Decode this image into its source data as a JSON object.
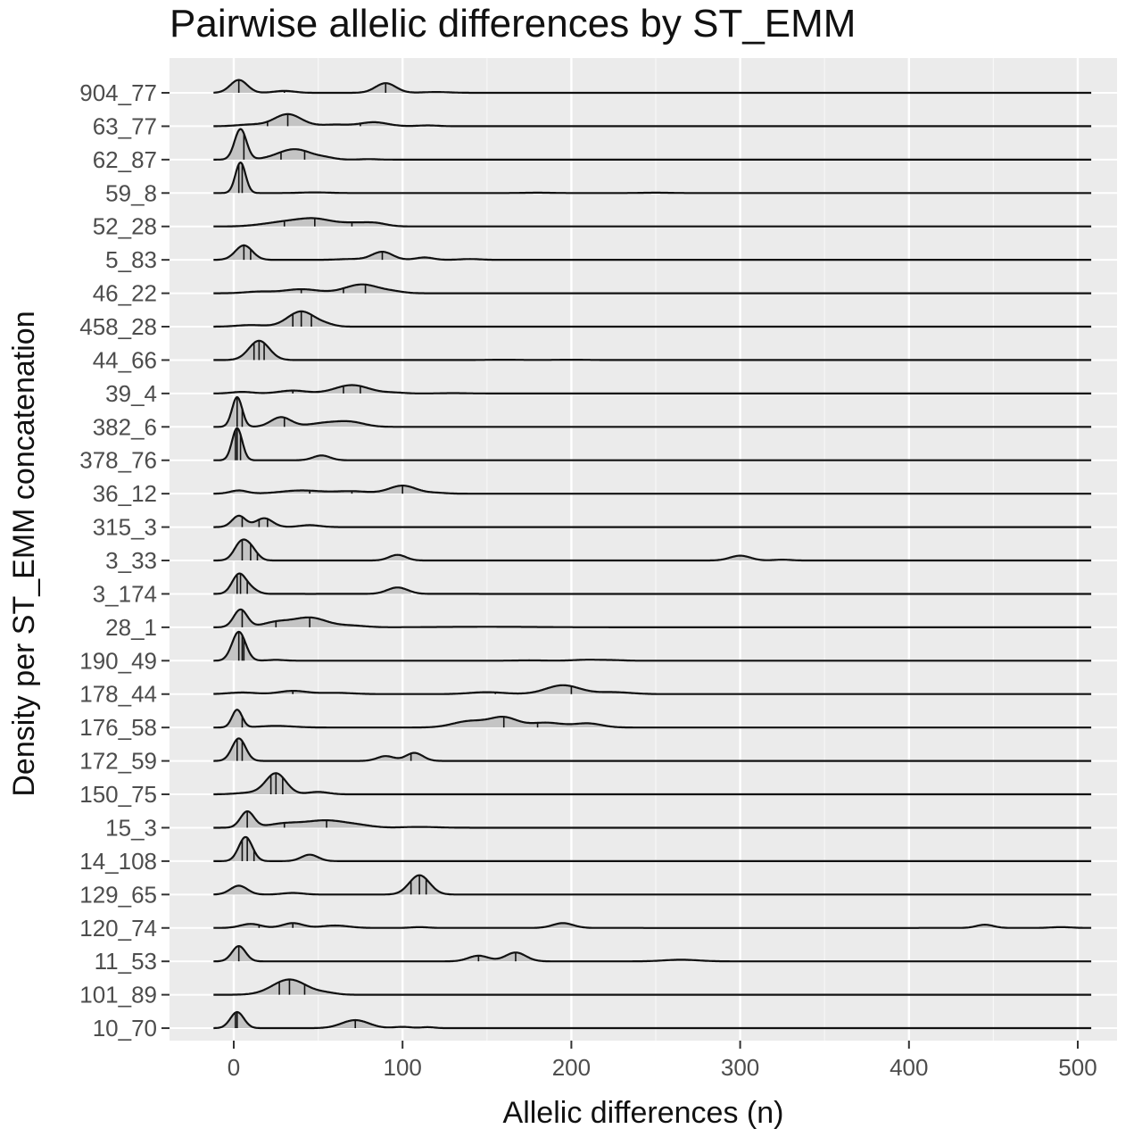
{
  "chart_data": {
    "type": "ridgeline-density",
    "title": "Pairwise allelic differences by ST_EMM",
    "xlabel": "Allelic differences (n)",
    "ylabel": "Density per ST_EMM concatenation",
    "xlim": [
      -38,
      525
    ],
    "x_ticks": [
      0,
      100,
      200,
      300,
      400,
      500
    ],
    "grid": true,
    "fill_color": "#c4c4c4",
    "panel_color": "#ebebeb",
    "line_color": "#111111",
    "quantile_lines": true,
    "series": [
      {
        "name": "904_77",
        "peaks": [
          [
            3,
            0.8,
            5
          ],
          [
            30,
            0.12,
            6
          ],
          [
            90,
            0.6,
            6
          ],
          [
            120,
            0.05,
            8
          ]
        ],
        "quantiles": [
          3,
          30,
          90
        ],
        "x_end": 130
      },
      {
        "name": "63_77",
        "peaks": [
          [
            10,
            0.1,
            8
          ],
          [
            32,
            0.75,
            8
          ],
          [
            60,
            0.1,
            8
          ],
          [
            83,
            0.25,
            8
          ],
          [
            115,
            0.05,
            6
          ]
        ],
        "quantiles": [
          20,
          32,
          75
        ],
        "x_end": 125
      },
      {
        "name": "62_87",
        "peaks": [
          [
            4,
            1.9,
            3.5
          ],
          [
            36,
            0.65,
            10
          ],
          [
            55,
            0.08,
            5
          ],
          [
            80,
            0.03,
            5
          ]
        ],
        "quantiles": [
          6,
          28,
          42
        ],
        "x_end": 90
      },
      {
        "name": "59_8",
        "peaks": [
          [
            4,
            1.9,
            3
          ],
          [
            48,
            0.04,
            8
          ],
          [
            180,
            0.02,
            8
          ],
          [
            250,
            0.02,
            8
          ]
        ],
        "quantiles": [
          3,
          5,
          45
        ],
        "x_end": 290
      },
      {
        "name": "52_28",
        "peaks": [
          [
            15,
            0.05,
            8
          ],
          [
            30,
            0.25,
            10
          ],
          [
            48,
            0.45,
            10
          ],
          [
            73,
            0.22,
            10
          ],
          [
            85,
            0.12,
            6
          ]
        ],
        "quantiles": [
          30,
          48,
          70
        ],
        "x_end": 95
      },
      {
        "name": "5_83",
        "peaks": [
          [
            6,
            0.9,
            5
          ],
          [
            70,
            0.05,
            8
          ],
          [
            88,
            0.5,
            6
          ],
          [
            113,
            0.15,
            5
          ],
          [
            140,
            0.05,
            6
          ]
        ],
        "quantiles": [
          6,
          10,
          88
        ],
        "x_end": 155
      },
      {
        "name": "46_22",
        "peaks": [
          [
            15,
            0.1,
            8
          ],
          [
            40,
            0.25,
            10
          ],
          [
            76,
            0.55,
            10
          ],
          [
            95,
            0.08,
            6
          ]
        ],
        "quantiles": [
          40,
          65,
          78
        ],
        "x_end": 105
      },
      {
        "name": "458_28",
        "peaks": [
          [
            10,
            0.1,
            8
          ],
          [
            40,
            0.95,
            8
          ],
          [
            55,
            0.1,
            5
          ]
        ],
        "quantiles": [
          35,
          40,
          46
        ],
        "x_end": 65
      },
      {
        "name": "44_66",
        "peaks": [
          [
            15,
            1.2,
            6
          ],
          [
            160,
            0.02,
            10
          ],
          [
            200,
            0.02,
            10
          ]
        ],
        "quantiles": [
          12,
          15,
          18
        ],
        "x_end": 220
      },
      {
        "name": "39_4",
        "peaks": [
          [
            5,
            0.1,
            6
          ],
          [
            35,
            0.18,
            8
          ],
          [
            70,
            0.52,
            10
          ],
          [
            95,
            0.05,
            6
          ],
          [
            130,
            0.02,
            8
          ]
        ],
        "quantiles": [
          35,
          65,
          75
        ],
        "x_end": 140
      },
      {
        "name": "382_6",
        "peaks": [
          [
            2,
            1.85,
            3
          ],
          [
            28,
            0.6,
            6
          ],
          [
            55,
            0.25,
            10
          ],
          [
            70,
            0.25,
            8
          ]
        ],
        "quantiles": [
          2,
          5,
          30
        ],
        "x_end": 85
      },
      {
        "name": "378_76",
        "peaks": [
          [
            2,
            2.0,
            3
          ],
          [
            52,
            0.3,
            5
          ]
        ],
        "quantiles": [
          1,
          2,
          4
        ],
        "x_end": 65
      },
      {
        "name": "36_12",
        "peaks": [
          [
            3,
            0.2,
            5
          ],
          [
            40,
            0.2,
            12
          ],
          [
            70,
            0.15,
            10
          ],
          [
            100,
            0.5,
            8
          ],
          [
            120,
            0.05,
            6
          ]
        ],
        "quantiles": [
          45,
          70,
          100
        ],
        "x_end": 130
      },
      {
        "name": "315_3",
        "peaks": [
          [
            3,
            0.7,
            4
          ],
          [
            18,
            0.55,
            5
          ],
          [
            45,
            0.12,
            6
          ]
        ],
        "quantiles": [
          5,
          15,
          20
        ],
        "x_end": 60
      },
      {
        "name": "3_33",
        "peaks": [
          [
            4,
            1.0,
            4
          ],
          [
            10,
            0.7,
            4
          ],
          [
            97,
            0.35,
            5
          ],
          [
            300,
            0.3,
            6
          ],
          [
            325,
            0.05,
            5
          ]
        ],
        "quantiles": [
          5,
          10,
          14
        ],
        "x_end": 335
      },
      {
        "name": "3_174",
        "peaks": [
          [
            3,
            1.2,
            4
          ],
          [
            10,
            0.3,
            4
          ],
          [
            97,
            0.4,
            6
          ]
        ],
        "quantiles": [
          2,
          4,
          8
        ],
        "x_end": 105
      },
      {
        "name": "28_1",
        "peaks": [
          [
            4,
            1.1,
            4
          ],
          [
            25,
            0.3,
            8
          ],
          [
            45,
            0.6,
            10
          ],
          [
            70,
            0.1,
            8
          ],
          [
            150,
            0.03,
            30
          ]
        ],
        "quantiles": [
          5,
          25,
          45
        ],
        "x_end": 210
      },
      {
        "name": "190_49",
        "peaks": [
          [
            3,
            1.8,
            4
          ],
          [
            25,
            0.05,
            5
          ],
          [
            175,
            0.02,
            8
          ],
          [
            210,
            0.06,
            8
          ],
          [
            225,
            0.03,
            6
          ]
        ],
        "quantiles": [
          3,
          5,
          6
        ],
        "x_end": 230
      },
      {
        "name": "178_44",
        "peaks": [
          [
            5,
            0.1,
            8
          ],
          [
            35,
            0.2,
            8
          ],
          [
            60,
            0.08,
            10
          ],
          [
            150,
            0.12,
            10
          ],
          [
            195,
            0.55,
            10
          ],
          [
            225,
            0.12,
            10
          ]
        ],
        "quantiles": [
          35,
          155,
          200
        ],
        "x_end": 245
      },
      {
        "name": "176_58",
        "peaks": [
          [
            2,
            1.1,
            3
          ],
          [
            25,
            0.1,
            10
          ],
          [
            140,
            0.4,
            10
          ],
          [
            160,
            0.6,
            8
          ],
          [
            185,
            0.3,
            10
          ],
          [
            210,
            0.25,
            8
          ]
        ],
        "quantiles": [
          5,
          160,
          180
        ],
        "x_end": 228
      },
      {
        "name": "172_59",
        "peaks": [
          [
            3,
            1.4,
            4
          ],
          [
            90,
            0.3,
            5
          ],
          [
            107,
            0.5,
            5
          ]
        ],
        "quantiles": [
          2,
          5,
          105
        ],
        "x_end": 120
      },
      {
        "name": "150_75",
        "peaks": [
          [
            10,
            0.1,
            8
          ],
          [
            25,
            1.3,
            6
          ],
          [
            50,
            0.15,
            6
          ]
        ],
        "quantiles": [
          22,
          25,
          29
        ],
        "x_end": 60
      },
      {
        "name": "15_3",
        "peaks": [
          [
            8,
            1.0,
            4
          ],
          [
            30,
            0.25,
            10
          ],
          [
            55,
            0.45,
            12
          ],
          [
            75,
            0.1,
            8
          ],
          [
            110,
            0.05,
            10
          ]
        ],
        "quantiles": [
          8,
          30,
          55
        ],
        "x_end": 140
      },
      {
        "name": "14_108",
        "peaks": [
          [
            7,
            1.5,
            4
          ],
          [
            45,
            0.4,
            5
          ]
        ],
        "quantiles": [
          5,
          8,
          12
        ],
        "x_end": 60
      },
      {
        "name": "129_65",
        "peaks": [
          [
            3,
            0.55,
            5
          ],
          [
            35,
            0.1,
            6
          ],
          [
            110,
            1.2,
            6
          ]
        ],
        "quantiles": [
          105,
          110,
          114
        ],
        "x_end": 125
      },
      {
        "name": "120_74",
        "peaks": [
          [
            10,
            0.25,
            6
          ],
          [
            35,
            0.3,
            6
          ],
          [
            60,
            0.15,
            8
          ],
          [
            110,
            0.05,
            5
          ],
          [
            195,
            0.3,
            6
          ],
          [
            445,
            0.2,
            5
          ],
          [
            490,
            0.05,
            6
          ]
        ],
        "quantiles": [
          15,
          35,
          110
        ],
        "x_end": 510
      },
      {
        "name": "11_53",
        "peaks": [
          [
            3,
            0.95,
            4
          ],
          [
            145,
            0.35,
            6
          ],
          [
            167,
            0.55,
            6
          ],
          [
            265,
            0.1,
            10
          ]
        ],
        "quantiles": [
          3,
          145,
          167
        ],
        "x_end": 285
      },
      {
        "name": "101_89",
        "peaks": [
          [
            33,
            0.95,
            10
          ],
          [
            55,
            0.1,
            6
          ]
        ],
        "quantiles": [
          27,
          33,
          42
        ],
        "x_end": 75
      },
      {
        "name": "10_70",
        "peaks": [
          [
            2,
            1.0,
            4
          ],
          [
            72,
            0.5,
            8
          ],
          [
            100,
            0.08,
            5
          ],
          [
            115,
            0.06,
            4
          ]
        ],
        "quantiles": [
          1,
          2,
          72
        ],
        "x_end": 125
      }
    ]
  }
}
